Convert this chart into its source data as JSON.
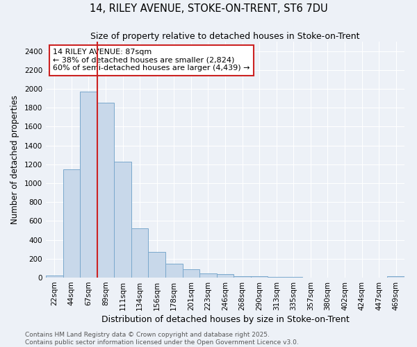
{
  "title1": "14, RILEY AVENUE, STOKE-ON-TRENT, ST6 7DU",
  "title2": "Size of property relative to detached houses in Stoke-on-Trent",
  "xlabel": "Distribution of detached houses by size in Stoke-on-Trent",
  "ylabel": "Number of detached properties",
  "bar_labels": [
    "22sqm",
    "44sqm",
    "67sqm",
    "89sqm",
    "111sqm",
    "134sqm",
    "156sqm",
    "178sqm",
    "201sqm",
    "223sqm",
    "246sqm",
    "268sqm",
    "290sqm",
    "313sqm",
    "335sqm",
    "357sqm",
    "380sqm",
    "402sqm",
    "424sqm",
    "447sqm",
    "469sqm"
  ],
  "bar_values": [
    25,
    1150,
    1970,
    1850,
    1230,
    520,
    275,
    150,
    90,
    45,
    40,
    18,
    15,
    8,
    5,
    3,
    2,
    2,
    2,
    2,
    12
  ],
  "bar_color": "#c8d8ea",
  "bar_edgecolor": "#7aa8cc",
  "vline_index": 3,
  "annotation_line1": "14 RILEY AVENUE: 87sqm",
  "annotation_line2": "← 38% of detached houses are smaller (2,824)",
  "annotation_line3": "60% of semi-detached houses are larger (4,439) →",
  "annotation_box_color": "white",
  "annotation_box_edgecolor": "#cc2222",
  "vline_color": "#cc2222",
  "ylim_max": 2500,
  "yticks": [
    0,
    200,
    400,
    600,
    800,
    1000,
    1200,
    1400,
    1600,
    1800,
    2000,
    2200,
    2400
  ],
  "footer_text": "Contains HM Land Registry data © Crown copyright and database right 2025.\nContains public sector information licensed under the Open Government Licence v3.0.",
  "background_color": "#edf1f7",
  "grid_color": "#ffffff",
  "title1_fontsize": 10.5,
  "title2_fontsize": 9,
  "xlabel_fontsize": 9,
  "ylabel_fontsize": 8.5,
  "tick_fontsize": 7.5,
  "annotation_fontsize": 8,
  "footer_fontsize": 6.5
}
